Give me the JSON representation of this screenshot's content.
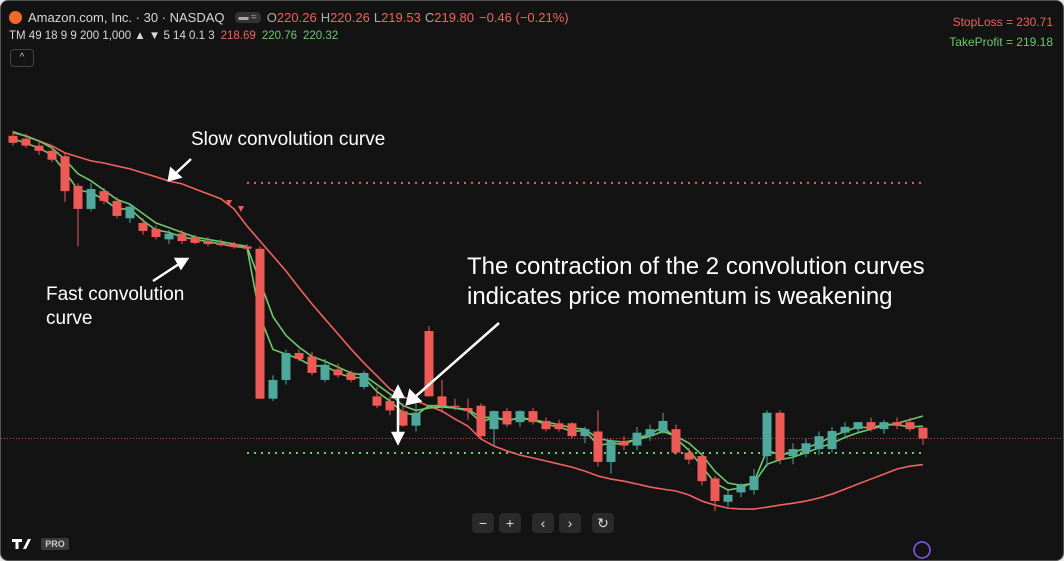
{
  "chart_data": {
    "type": "candlestick",
    "symbol": "Amazon.com, Inc. · 30 · NASDAQ",
    "legend_ohlc": [
      {
        "label": "O",
        "value": "220.26"
      },
      {
        "label": "H",
        "value": "220.26"
      },
      {
        "label": "L",
        "value": "219.53"
      },
      {
        "label": "C",
        "value": "219.80"
      }
    ],
    "change": "−0.46 (−0.21%)",
    "indicator": "TM 49 18 9 9 200 1,000 ▲ ▼ 5 14 0.1 3",
    "stop_loss_label": "StopLoss = 230.71",
    "stop_loss": 230.71,
    "stop_loss_color": "#f0625d",
    "take_profit_label": "TakeProfit = 219.18",
    "take_profit": 219.18,
    "take_profit_color": "#6cc96c",
    "last_price": 219.8,
    "annotations": {
      "slow": [
        "Slow convolution curve"
      ],
      "fast": [
        "Fast convolution",
        "curve"
      ],
      "contraction": [
        "The contraction of the 2 convolution curves",
        "indicates price momentum is weakening"
      ]
    },
    "badge": "PRO",
    "ylim": [
      216.28,
      235.06
    ],
    "up_color": "#4ea89b",
    "down_color": "#ee5a55",
    "open": [
      232.72,
      232.6,
      232.3,
      232.08,
      231.85,
      230.58,
      229.6,
      230.36,
      229.94,
      229.2,
      229.0,
      228.75,
      228.3,
      228.55,
      228.4,
      228.23,
      228.15,
      228.1,
      228.0,
      227.9,
      221.5,
      222.3,
      223.45,
      223.3,
      222.3,
      222.75,
      222.6,
      222.0,
      221.6,
      221.4,
      220.97,
      220.35,
      224.39,
      221.6,
      221.2,
      221.1,
      221.2,
      220.2,
      220.97,
      220.5,
      220.97,
      220.55,
      220.45,
      220.45,
      219.9,
      220.1,
      218.8,
      219.7,
      219.5,
      219.9,
      220.1,
      220.2,
      219.2,
      219.05,
      218.1,
      217.1,
      217.5,
      217.6,
      219.05,
      220.9,
      219.05,
      219.2,
      219.35,
      219.35,
      220.05,
      220.2,
      220.5,
      220.2,
      220.5,
      220.5,
      220.26
    ],
    "high": [
      232.93,
      232.8,
      232.5,
      232.2,
      232.0,
      230.7,
      230.7,
      230.5,
      230.1,
      229.8,
      229.2,
      228.9,
      228.7,
      228.7,
      228.5,
      228.4,
      228.3,
      228.2,
      228.1,
      228.0,
      222.5,
      223.6,
      223.6,
      223.5,
      223.2,
      223.0,
      222.7,
      222.7,
      222.0,
      221.6,
      221.3,
      221.3,
      224.6,
      222.3,
      221.5,
      221.5,
      221.3,
      221.0,
      221.1,
      221.0,
      221.1,
      220.7,
      220.6,
      220.5,
      220.3,
      221.0,
      219.8,
      219.9,
      220.3,
      220.4,
      220.9,
      220.4,
      219.4,
      219.1,
      218.2,
      217.6,
      217.9,
      218.5,
      221.0,
      221.0,
      219.6,
      219.8,
      220.1,
      220.3,
      220.5,
      220.5,
      220.7,
      220.6,
      220.7,
      220.7,
      220.26
    ],
    "low": [
      232.3,
      232.2,
      231.9,
      231.6,
      229.9,
      228.0,
      229.5,
      229.8,
      229.2,
      229.0,
      228.5,
      228.3,
      228.1,
      228.1,
      228.1,
      228.0,
      228.0,
      227.9,
      227.8,
      221.5,
      221.4,
      222.1,
      223.1,
      222.5,
      222.2,
      222.4,
      222.2,
      221.9,
      221.1,
      220.8,
      220.3,
      220.1,
      221.6,
      220.9,
      221.0,
      220.6,
      219.8,
      219.5,
      220.3,
      220.3,
      220.4,
      220.1,
      220.1,
      219.8,
      219.6,
      218.6,
      218.3,
      219.3,
      219.3,
      219.7,
      220.0,
      219.1,
      218.7,
      217.8,
      216.7,
      216.9,
      217.3,
      217.4,
      218.6,
      218.7,
      218.7,
      219.0,
      219.1,
      219.2,
      219.9,
      220.0,
      220.1,
      220.0,
      220.2,
      220.1,
      219.53
    ],
    "close": [
      232.42,
      232.3,
      232.08,
      231.7,
      230.36,
      229.6,
      230.45,
      229.94,
      229.3,
      229.7,
      228.66,
      228.4,
      228.55,
      228.23,
      228.15,
      228.1,
      228.05,
      227.98,
      227.9,
      221.5,
      222.3,
      223.45,
      223.2,
      222.6,
      222.95,
      222.5,
      222.3,
      222.6,
      221.2,
      221.0,
      220.35,
      220.9,
      221.6,
      221.2,
      221.15,
      220.97,
      219.9,
      220.97,
      220.4,
      220.97,
      220.5,
      220.2,
      220.2,
      219.9,
      220.2,
      218.8,
      219.7,
      219.5,
      220.05,
      220.2,
      220.55,
      219.2,
      218.9,
      217.98,
      217.13,
      217.4,
      217.8,
      218.2,
      220.9,
      218.9,
      219.35,
      219.6,
      219.9,
      220.12,
      220.3,
      220.5,
      220.2,
      220.5,
      220.35,
      220.2,
      219.8
    ],
    "series": [
      {
        "color": "#f0625d",
        "values": [
          232.84,
          232.72,
          232.5,
          232.29,
          231.99,
          231.82,
          231.65,
          231.56,
          231.43,
          231.31,
          231.14,
          230.97,
          230.79,
          230.67,
          230.45,
          230.24,
          230.03,
          229.6,
          228.87,
          228.23,
          227.59,
          226.95,
          226.23,
          225.54,
          224.9,
          224.26,
          223.62,
          223.02,
          222.47,
          221.91,
          221.57,
          221.4,
          221.19,
          220.97,
          220.63,
          220.33,
          219.78,
          219.48,
          219.27,
          219.09,
          218.97,
          218.84,
          218.71,
          218.58,
          218.41,
          218.2,
          218.07,
          217.98,
          217.86,
          217.73,
          217.64,
          217.56,
          217.39,
          217.13,
          216.96,
          216.83,
          216.79,
          216.79,
          216.87,
          216.96,
          217.04,
          217.13,
          217.26,
          217.43,
          217.64,
          217.86,
          218.07,
          218.28,
          218.5,
          218.62,
          218.69
        ]
      },
      {
        "color": "#6cc96c",
        "values": [
          232.9,
          232.7,
          232.5,
          232.2,
          231.7,
          231.1,
          230.8,
          230.4,
          230.0,
          229.8,
          229.4,
          229.0,
          228.8,
          228.6,
          228.4,
          228.3,
          228.2,
          228.1,
          228.0,
          226.5,
          225.0,
          224.2,
          223.7,
          223.3,
          223.1,
          222.85,
          222.6,
          222.5,
          222.1,
          221.7,
          221.2,
          221.0,
          221.1,
          221.15,
          221.1,
          221.05,
          220.7,
          220.7,
          220.6,
          220.65,
          220.6,
          220.5,
          220.4,
          220.25,
          220.2,
          219.8,
          219.7,
          219.65,
          219.75,
          219.9,
          220.1,
          219.9,
          219.6,
          219.1,
          218.4,
          217.9,
          217.8,
          217.9,
          218.7,
          218.9,
          219.0,
          219.2,
          219.4,
          219.6,
          219.85,
          220.05,
          220.2,
          220.35,
          220.45,
          220.6,
          220.76
        ]
      },
      {
        "color": "#6cc96c",
        "values": [
          232.6,
          232.4,
          232.2,
          231.9,
          231.2,
          230.4,
          230.3,
          230.0,
          229.6,
          229.6,
          229.1,
          228.7,
          228.6,
          228.4,
          228.3,
          228.2,
          228.1,
          228.0,
          227.95,
          225.0,
          223.6,
          223.4,
          223.2,
          222.9,
          222.9,
          222.6,
          222.4,
          222.4,
          221.8,
          221.4,
          220.9,
          220.8,
          221.2,
          221.2,
          221.1,
          221.0,
          220.5,
          220.7,
          220.55,
          220.7,
          220.6,
          220.4,
          220.3,
          220.1,
          220.15,
          219.5,
          219.6,
          219.55,
          219.8,
          220.0,
          220.3,
          219.8,
          219.3,
          218.6,
          217.9,
          217.6,
          217.7,
          217.95,
          219.3,
          219.1,
          219.2,
          219.4,
          219.6,
          219.9,
          220.1,
          220.3,
          220.25,
          220.4,
          220.38,
          220.3,
          220.32
        ]
      }
    ]
  }
}
